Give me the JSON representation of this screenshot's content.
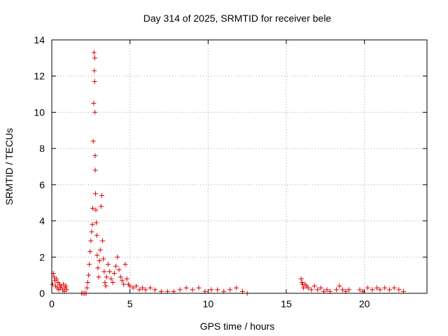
{
  "chart_data": {
    "type": "scatter",
    "title": "Day 314 of 2025, SRMTID for receiver bele",
    "xlabel": "GPS time / hours",
    "ylabel": "SRMTID / TECUs",
    "xlim": [
      0,
      24
    ],
    "ylim": [
      0,
      14
    ],
    "xticks": [
      0,
      5,
      10,
      15,
      20
    ],
    "yticks": [
      0,
      2,
      4,
      6,
      8,
      10,
      12,
      14
    ],
    "grid": true,
    "marker": "plus",
    "marker_color": "#e00000",
    "series": [
      {
        "name": "SRMTID",
        "x": [
          0.05,
          0.1,
          0.15,
          0.2,
          0.25,
          0.3,
          0.35,
          0.4,
          0.45,
          0.5,
          0.55,
          0.6,
          0.7,
          0.75,
          0.8,
          0.85,
          0.9,
          0.95,
          1.9,
          2.0,
          2.1,
          2.2,
          2.25,
          2.3,
          2.35,
          2.4,
          2.45,
          2.5,
          2.55,
          2.6,
          2.62,
          2.65,
          2.68,
          2.7,
          2.72,
          2.74,
          2.75,
          2.76,
          2.77,
          2.78,
          2.8,
          2.82,
          2.85,
          2.88,
          2.9,
          2.95,
          3.0,
          3.05,
          3.1,
          3.15,
          3.2,
          3.25,
          3.3,
          3.35,
          3.4,
          3.45,
          3.5,
          3.6,
          3.7,
          3.8,
          3.9,
          4.0,
          4.1,
          4.2,
          4.3,
          4.4,
          4.5,
          4.6,
          4.7,
          4.8,
          4.9,
          5.0,
          5.2,
          5.4,
          5.6,
          5.8,
          6.0,
          6.3,
          6.6,
          7.0,
          7.4,
          7.8,
          8.2,
          8.6,
          9.0,
          9.4,
          9.8,
          10.2,
          10.6,
          11.0,
          11.4,
          11.8,
          12.2,
          12.5,
          15.95,
          16.0,
          16.05,
          16.1,
          16.2,
          16.3,
          16.4,
          16.6,
          16.8,
          17.0,
          17.2,
          17.4,
          17.6,
          17.8,
          18.2,
          18.4,
          18.6,
          18.8,
          19.0,
          19.7,
          19.9,
          20.2,
          20.5,
          20.8,
          21.0,
          21.3,
          21.6,
          21.9,
          22.2,
          22.5
        ],
        "y": [
          0.5,
          1.1,
          0.9,
          0.7,
          0.4,
          0.8,
          0.3,
          0.6,
          0.2,
          0.5,
          0.3,
          0.4,
          0.2,
          0.5,
          0.1,
          0.3,
          0.4,
          0.2,
          0.0,
          0.0,
          0.0,
          0.0,
          0.3,
          0.6,
          1.0,
          1.6,
          2.3,
          2.9,
          3.4,
          3.8,
          4.7,
          8.4,
          10.5,
          13.3,
          12.3,
          11.7,
          13.0,
          10.0,
          7.6,
          6.8,
          5.5,
          4.6,
          3.9,
          3.2,
          2.1,
          1.4,
          0.9,
          1.8,
          2.4,
          4.8,
          5.4,
          2.9,
          1.9,
          1.2,
          0.6,
          0.4,
          0.9,
          1.6,
          1.2,
          0.8,
          0.6,
          1.1,
          1.5,
          2.0,
          1.3,
          0.9,
          0.7,
          0.5,
          1.6,
          0.8,
          0.5,
          0.4,
          0.3,
          0.4,
          0.2,
          0.3,
          0.2,
          0.3,
          0.2,
          0.1,
          0.1,
          0.1,
          0.2,
          0.3,
          0.2,
          0.3,
          0.1,
          0.2,
          0.2,
          0.1,
          0.2,
          0.3,
          0.1,
          0.0,
          0.8,
          0.6,
          0.5,
          0.3,
          0.5,
          0.4,
          0.3,
          0.2,
          0.4,
          0.2,
          0.3,
          0.1,
          0.2,
          0.1,
          0.2,
          0.4,
          0.2,
          0.1,
          0.2,
          0.2,
          0.1,
          0.3,
          0.2,
          0.3,
          0.2,
          0.3,
          0.2,
          0.3,
          0.2,
          0.1
        ]
      }
    ]
  }
}
